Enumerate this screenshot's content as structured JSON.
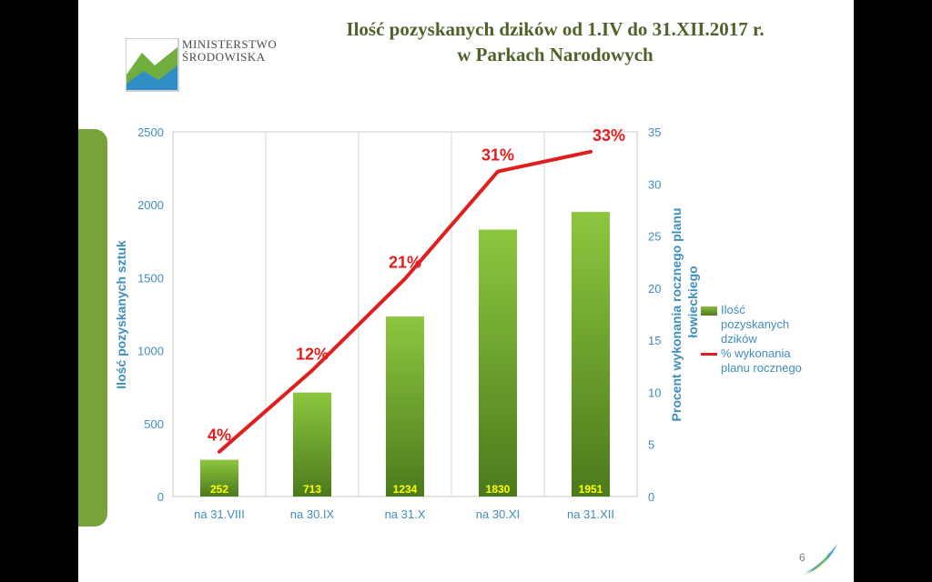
{
  "slide": {
    "title_line1": "Ilość pozyskanych dzików od 1.IV do 31.XII.2017 r.",
    "title_line2": "w Parkach Narodowych",
    "logo_line1": "MINISTERSTWO",
    "logo_line2": "ŚRODOWISKA",
    "page_number": "6"
  },
  "colors": {
    "bar": "#5a8a23",
    "line": "#e01e1e",
    "axis_text": "#3e8ebd",
    "title": "#4f6228"
  },
  "chart_data": {
    "type": "bar",
    "categories": [
      "na 31.VIII",
      "na 30.IX",
      "na 31.X",
      "na 30.XI",
      "na 31.XII"
    ],
    "series": [
      {
        "name": "Ilość pozyskanych dzików",
        "axis": "left",
        "type": "bar",
        "values": [
          252,
          713,
          1234,
          1830,
          1951
        ],
        "labels": [
          "252",
          "713",
          "1234",
          "1830",
          "1951"
        ]
      },
      {
        "name": "% wykonania planu rocznego",
        "axis": "right",
        "type": "line",
        "values": [
          4.3,
          12.1,
          20.9,
          31.2,
          33.1
        ],
        "labels": [
          "4%",
          "12%",
          "21%",
          "31%",
          "33%"
        ]
      }
    ],
    "ylabel": "Ilość pozyskanych sztuk",
    "y2label_line1": "Procent wykonania rocznego planu",
    "y2label_line2": "łowieckiego",
    "ylim": [
      0,
      2500
    ],
    "y2lim": [
      0,
      35
    ],
    "yticks": [
      0,
      500,
      1000,
      1500,
      2000,
      2500
    ],
    "y2ticks": [
      0,
      5,
      10,
      15,
      20,
      25,
      30,
      35
    ],
    "legend_position": "right"
  }
}
